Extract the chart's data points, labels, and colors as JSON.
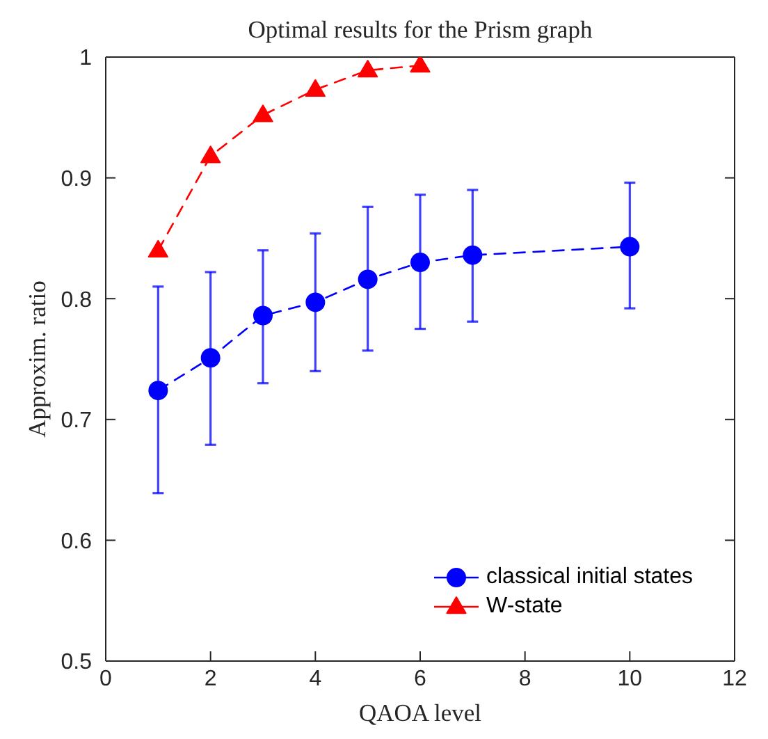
{
  "chart_data": {
    "type": "line",
    "title": "Optimal results for the Prism graph",
    "xlabel": "QAOA level",
    "ylabel": "Approxim. ratio",
    "series": [
      {
        "name": "classical initial states",
        "color": "#0000ff",
        "marker": "circle",
        "x": [
          1,
          2,
          3,
          4,
          5,
          6,
          7,
          10
        ],
        "values": [
          0.724,
          0.751,
          0.786,
          0.797,
          0.816,
          0.83,
          0.836,
          0.843
        ],
        "errors": [
          [
            0.639,
            0.81
          ],
          [
            0.679,
            0.822
          ],
          [
            0.73,
            0.84
          ],
          [
            0.74,
            0.854
          ],
          [
            0.757,
            0.876
          ],
          [
            0.775,
            0.886
          ],
          [
            0.781,
            0.89
          ],
          [
            0.792,
            0.896
          ]
        ]
      },
      {
        "name": "W-state",
        "color": "#ff0000",
        "marker": "triangle",
        "x": [
          1,
          2,
          3,
          4,
          5,
          6
        ],
        "values": [
          0.84,
          0.918,
          0.952,
          0.973,
          0.989,
          0.993
        ]
      }
    ],
    "xlim": [
      0,
      12
    ],
    "xticks": [
      0,
      2,
      4,
      6,
      8,
      10,
      12
    ],
    "ylim": [
      0.5,
      1
    ],
    "yticks": [
      0.5,
      0.6,
      0.7,
      0.8,
      0.9,
      1
    ],
    "grid": false,
    "legend": "bottom right",
    "line_style": "dashed"
  }
}
